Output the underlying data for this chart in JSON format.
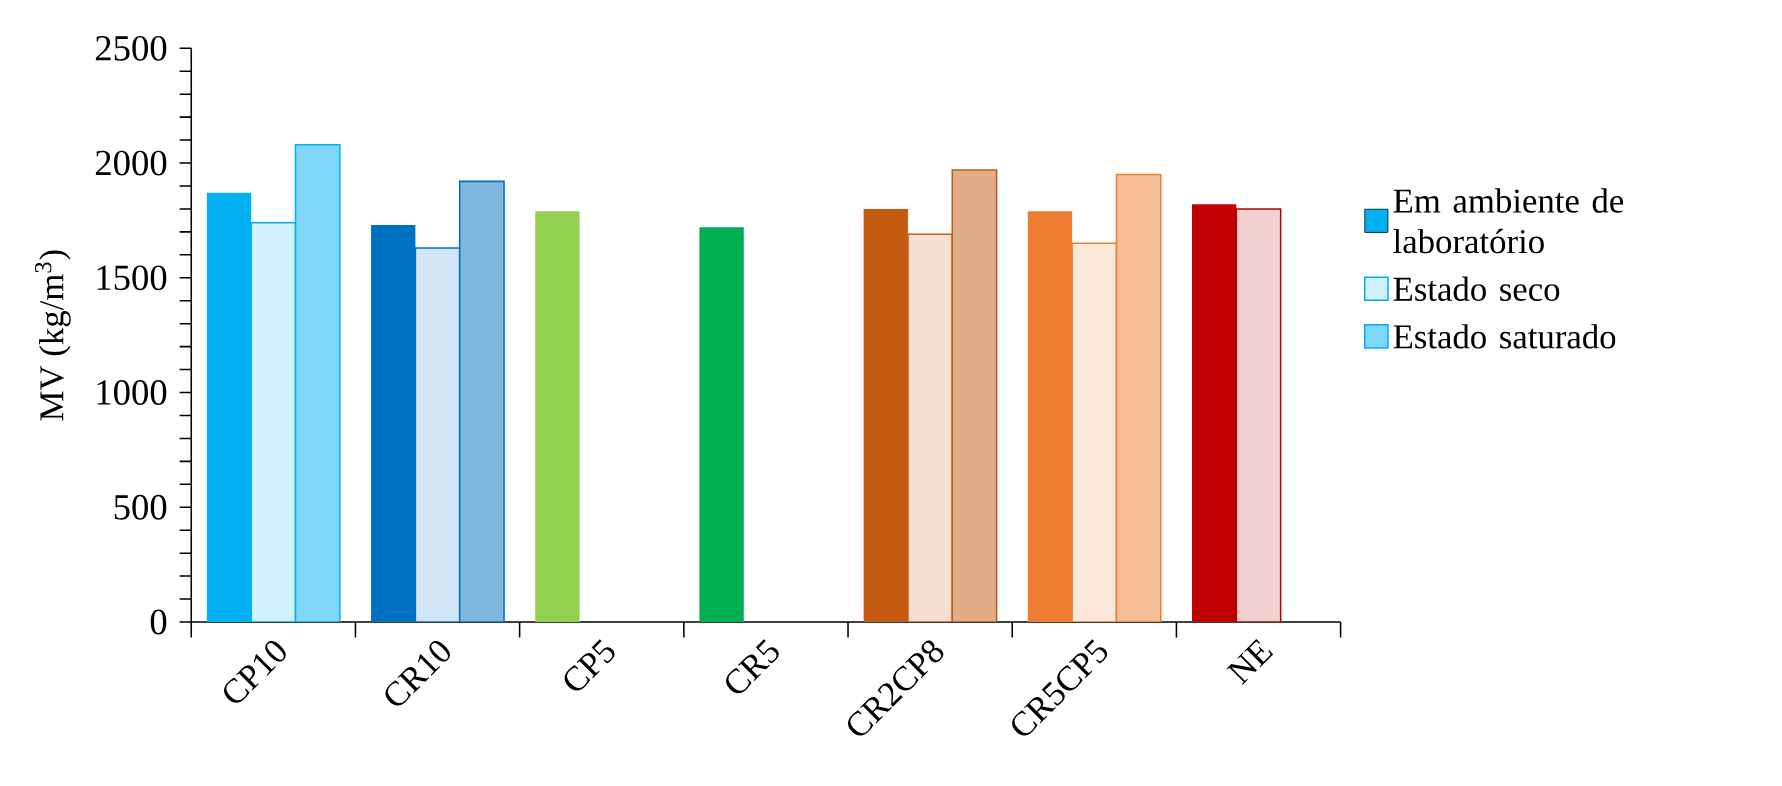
{
  "chart_data": {
    "type": "bar",
    "ylabel": "MV (kg/m$^{3}$)",
    "categories": [
      "CP10",
      "CR10",
      "CP5",
      "CR5",
      "CR2CP8",
      "CR5CP5",
      "NE"
    ],
    "series": [
      {
        "name": "Em ambiente de laboratório",
        "colors": [
          "#00b0f0",
          "#0070c0",
          "#92d050",
          "#00b050",
          "#c55a11",
          "#ed7d31",
          "#c00000"
        ],
        "values": [
          1870,
          1730,
          1790,
          1720,
          1800,
          1790,
          1820
        ]
      },
      {
        "name": "Estado seco",
        "colors": [
          "#00b0f0",
          "#0070c0",
          "#92d050",
          "#00b050",
          "#c55a11",
          "#ed7d31",
          "#c00000"
        ],
        "values": [
          1740,
          1630,
          null,
          null,
          1690,
          1650,
          1800
        ]
      },
      {
        "name": "Estado saturado",
        "colors": [
          "#00b0f0",
          "#0070c0",
          "#92d050",
          "#00b050",
          "#c55a11",
          "#ed7d31",
          "#c00000"
        ],
        "values": [
          2080,
          1920,
          null,
          null,
          1970,
          1950,
          null
        ]
      }
    ],
    "ylim": [
      0,
      2500
    ],
    "yticks": [
      0,
      {
        "value": 100,
        "label": null
      },
      {
        "value": 200,
        "label": null
      },
      {
        "value": 300,
        "label": null
      },
      {
        "value": 400,
        "label": null
      },
      500,
      {
        "value": 600,
        "label": null
      },
      {
        "value": 700,
        "label": null
      },
      {
        "value": 800,
        "label": null
      },
      {
        "value": 900,
        "label": null
      },
      1000,
      {
        "value": 1100,
        "label": null
      },
      {
        "value": 1200,
        "label": null
      },
      {
        "value": 1300,
        "label": null
      },
      {
        "value": 1400,
        "label": null
      },
      1500,
      {
        "value": 1600,
        "label": null
      },
      {
        "value": 1700,
        "label": null
      },
      {
        "value": 1800,
        "label": null
      },
      {
        "value": 1900,
        "label": null
      },
      2000,
      {
        "value": 2100,
        "label": null
      },
      {
        "value": 2200,
        "label": null
      },
      {
        "value": 2300,
        "label": null
      },
      {
        "value": 2400,
        "label": null
      },
      2500
    ],
    "grid": false,
    "legend": "right"
  }
}
